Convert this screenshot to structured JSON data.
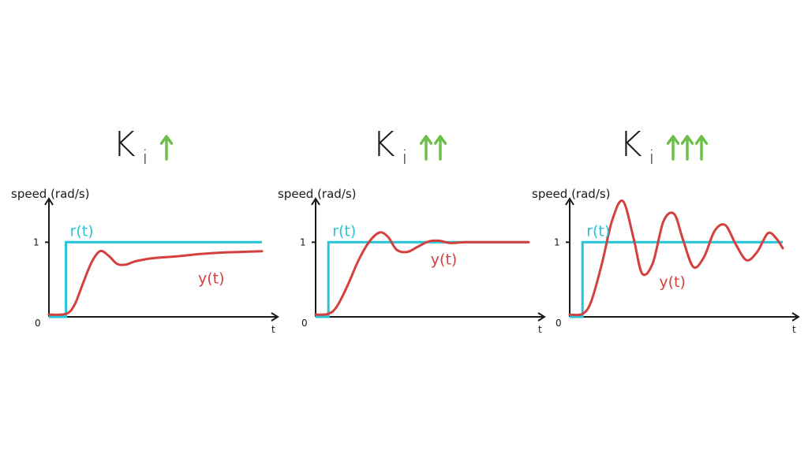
{
  "colors": {
    "reference": "#25c4d6",
    "response": "#d3403d",
    "arrow": "#6cc04a",
    "axis": "#1a1a1a"
  },
  "chart_data": [
    {
      "type": "line",
      "title": "K",
      "title_subscript": "i",
      "arrow_count": 1,
      "arrow_icon": "up-arrow-icon",
      "ylabel": "speed (rad/s)",
      "xlabel": "t",
      "origin_label": "0",
      "y_tick_label": "1",
      "ylim": [
        0,
        1.5
      ],
      "xlim": [
        0,
        10
      ],
      "series": [
        {
          "name": "r(t)",
          "x": [
            0,
            0.8,
            0.8,
            10
          ],
          "y": [
            0,
            0,
            1,
            1
          ]
        },
        {
          "name": "y(t)",
          "x": [
            0,
            0.8,
            1.2,
            1.6,
            2.0,
            2.4,
            2.8,
            3.2,
            3.6,
            4.0,
            4.5,
            5.0,
            6.0,
            7.0,
            8.0,
            9.0,
            10.0
          ],
          "y": [
            0.03,
            0.04,
            0.16,
            0.45,
            0.73,
            0.88,
            0.82,
            0.71,
            0.7,
            0.74,
            0.77,
            0.79,
            0.81,
            0.84,
            0.86,
            0.87,
            0.88
          ]
        }
      ],
      "annotations": {
        "r_label": "r(t)",
        "y_label": "y(t)"
      }
    },
    {
      "type": "line",
      "title": "K",
      "title_subscript": "i",
      "arrow_count": 2,
      "arrow_icon": "up-arrow-icon",
      "ylabel": "speed (rad/s)",
      "xlabel": "t",
      "origin_label": "0",
      "y_tick_label": "1",
      "ylim": [
        0,
        1.5
      ],
      "xlim": [
        0,
        10
      ],
      "series": [
        {
          "name": "r(t)",
          "x": [
            0,
            0.6,
            0.6,
            10
          ],
          "y": [
            0,
            0,
            1,
            1
          ]
        },
        {
          "name": "y(t)",
          "x": [
            0,
            0.6,
            1.0,
            1.5,
            2.0,
            2.5,
            3.0,
            3.4,
            3.8,
            4.3,
            4.8,
            5.3,
            5.8,
            6.3,
            7.0,
            8.0,
            9.0,
            10.0
          ],
          "y": [
            0.03,
            0.04,
            0.14,
            0.42,
            0.75,
            1.0,
            1.13,
            1.07,
            0.9,
            0.87,
            0.94,
            1.01,
            1.02,
            0.99,
            1.0,
            1.0,
            1.0,
            1.0
          ]
        }
      ],
      "annotations": {
        "r_label": "r(t)",
        "y_label": "y(t)"
      }
    },
    {
      "type": "line",
      "title": "K",
      "title_subscript": "i",
      "arrow_count": 3,
      "arrow_icon": "up-arrow-icon",
      "ylabel": "speed (rad/s)",
      "xlabel": "t",
      "origin_label": "0",
      "y_tick_label": "1",
      "ylim": [
        0,
        1.5
      ],
      "xlim": [
        0,
        10
      ],
      "series": [
        {
          "name": "r(t)",
          "x": [
            0,
            0.6,
            0.6,
            10
          ],
          "y": [
            0,
            0,
            1,
            1
          ]
        },
        {
          "name": "y(t)",
          "x": [
            0,
            0.6,
            1.0,
            1.5,
            2.0,
            2.5,
            3.0,
            3.4,
            3.9,
            4.4,
            4.9,
            5.3,
            5.8,
            6.3,
            6.8,
            7.3,
            7.8,
            8.3,
            8.8,
            9.3,
            9.7,
            10.0
          ],
          "y": [
            0.03,
            0.04,
            0.2,
            0.7,
            1.3,
            1.55,
            1.05,
            0.58,
            0.72,
            1.28,
            1.38,
            1.05,
            0.67,
            0.8,
            1.15,
            1.23,
            0.97,
            0.76,
            0.87,
            1.12,
            1.05,
            0.92
          ]
        }
      ],
      "annotations": {
        "r_label": "r(t)",
        "y_label": "y(t)"
      }
    }
  ]
}
